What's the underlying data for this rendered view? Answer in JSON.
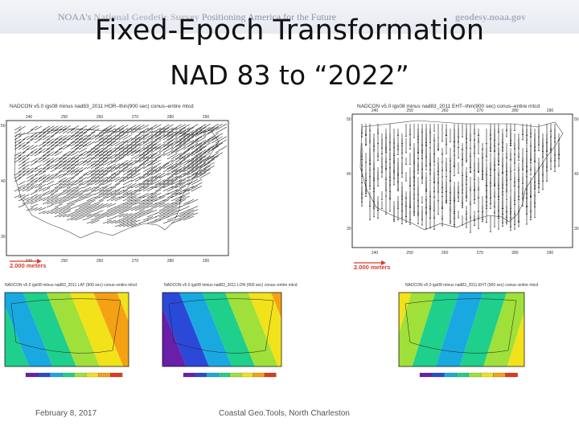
{
  "banner": {
    "agency_prefix": "NOAA's",
    "agency_name": "National Geodetic Survey",
    "tagline": "Positioning America for the Future",
    "website": "geodesy.noaa.gov"
  },
  "slide": {
    "title_line1": "Fixed-Epoch Transformation",
    "title_line2": "NAD 83 to “2022”"
  },
  "maps": {
    "horizontal": {
      "plot_title": "NADCON v5.0 igs08 minus nad83_2011 HOR–thin(900 sec) conus–entire mtcd",
      "scale_label": "2.000 meters",
      "lon_ticks": [
        "240",
        "250",
        "260",
        "270",
        "280",
        "290"
      ],
      "lat_ticks": [
        "50",
        "40",
        "30"
      ]
    },
    "ellipsoid_height": {
      "plot_title": "NADCON v5.0 igs08 minus nad83_2011 EHT–thin(900 sec) conus–entire mtcd",
      "scale_label": "2.000 meters",
      "lon_ticks": [
        "240",
        "250",
        "260",
        "270",
        "280",
        "290"
      ],
      "lat_ticks": [
        "50",
        "40",
        "30"
      ]
    },
    "latitude": {
      "plot_title": "NADCON v5.0 igs08 minus nad83_2011 LAT (900 sec) conus–entire mtcd"
    },
    "longitude": {
      "plot_title": "NADCON v5.0 igs08 minus nad83_2011 LON (900 sec) conus–entire mtcd"
    },
    "height": {
      "plot_title": "NADCON v5.0 igs08 minus nad83_2011 EHT (900 sec) conus–entire mtcd"
    }
  },
  "colors": {
    "title": "#111111",
    "scale_arrow": "#d93a2b",
    "colormap": [
      "#6a1fa8",
      "#2a49d8",
      "#19a9e0",
      "#1fcf8c",
      "#9fe03a",
      "#f2e21a",
      "#f5a114",
      "#e23a1c"
    ]
  },
  "footer": {
    "date": "February 8, 2017",
    "venue": "Coastal Geo.Tools, North Charleston"
  }
}
